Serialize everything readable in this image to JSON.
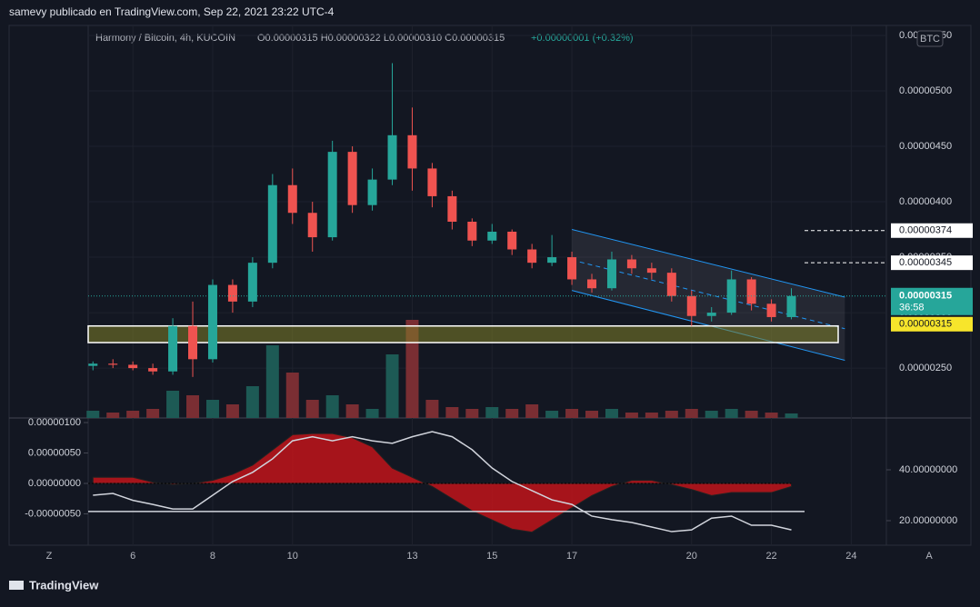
{
  "header": {
    "publisher": "samevy publicado en TradingView.com, Sep 22, 2021 23:22 UTC-4",
    "symbol": "Harmony / Bitcoin, 4h, KUCOIN",
    "ohlc": "O0.00000315 H0.00000322 L0.00000310 C0.00000315",
    "change": "+0.00000001 (+0.32%)",
    "currency": "BTC",
    "left_button": "Z",
    "right_button": "A",
    "logo": "TradingView"
  },
  "chart_data": [
    {
      "type": "candlestick",
      "up_color": "#26a69a",
      "down_color": "#ef5350",
      "x": [
        5.0,
        5.5,
        6.0,
        6.5,
        7.0,
        7.5,
        8.0,
        8.5,
        9.0,
        9.5,
        10.0,
        10.5,
        11.0,
        11.5,
        12.0,
        12.5,
        13.0,
        13.5,
        14.0,
        14.5,
        15.0,
        15.5,
        16.0,
        16.5,
        17.0,
        17.5,
        18.0,
        18.5,
        19.0,
        19.5,
        20.0,
        20.5,
        21.0,
        21.5,
        22.0,
        22.5
      ],
      "open": [
        2.52e-06,
        2.54e-06,
        2.53e-06,
        2.5e-06,
        2.47e-06,
        2.88e-06,
        2.58e-06,
        3.25e-06,
        3.1e-06,
        3.45e-06,
        4.15e-06,
        3.9e-06,
        3.68e-06,
        4.45e-06,
        3.97e-06,
        4.2e-06,
        4.6e-06,
        4.3e-06,
        4.05e-06,
        3.82e-06,
        3.65e-06,
        3.73e-06,
        3.57e-06,
        3.45e-06,
        3.5e-06,
        3.3e-06,
        3.22e-06,
        3.48e-06,
        3.4e-06,
        3.36e-06,
        3.15e-06,
        2.97e-06,
        3e-06,
        3.3e-06,
        3.08e-06,
        2.96e-06
      ],
      "high": [
        2.56e-06,
        2.58e-06,
        2.56e-06,
        2.54e-06,
        2.95e-06,
        3.1e-06,
        3.3e-06,
        3.3e-06,
        3.5e-06,
        4.25e-06,
        4.3e-06,
        4e-06,
        4.55e-06,
        4.5e-06,
        4.3e-06,
        5.25e-06,
        4.85e-06,
        4.35e-06,
        4.1e-06,
        3.85e-06,
        3.8e-06,
        3.75e-06,
        3.62e-06,
        3.7e-06,
        3.55e-06,
        3.35e-06,
        3.55e-06,
        3.52e-06,
        3.45e-06,
        3.4e-06,
        3.2e-06,
        3.05e-06,
        3.38e-06,
        3.32e-06,
        3.12e-06,
        3.22e-06
      ],
      "low": [
        2.48e-06,
        2.5e-06,
        2.48e-06,
        2.44e-06,
        2.44e-06,
        2.42e-06,
        2.55e-06,
        3e-06,
        3.05e-06,
        3.4e-06,
        3.8e-06,
        3.55e-06,
        3.65e-06,
        3.9e-06,
        3.92e-06,
        4.15e-06,
        4.1e-06,
        3.95e-06,
        3.75e-06,
        3.6e-06,
        3.62e-06,
        3.52e-06,
        3.4e-06,
        3.42e-06,
        3.25e-06,
        3.18e-06,
        3.2e-06,
        3.35e-06,
        3.3e-06,
        3.1e-06,
        2.88e-06,
        2.92e-06,
        2.98e-06,
        3.02e-06,
        2.92e-06,
        2.94e-06
      ],
      "close": [
        2.54e-06,
        2.53e-06,
        2.5e-06,
        2.47e-06,
        2.88e-06,
        2.58e-06,
        3.25e-06,
        3.1e-06,
        3.45e-06,
        4.15e-06,
        3.9e-06,
        3.68e-06,
        4.45e-06,
        3.97e-06,
        4.2e-06,
        4.6e-06,
        4.3e-06,
        4.05e-06,
        3.82e-06,
        3.65e-06,
        3.73e-06,
        3.57e-06,
        3.45e-06,
        3.5e-06,
        3.3e-06,
        3.22e-06,
        3.48e-06,
        3.4e-06,
        3.36e-06,
        3.15e-06,
        2.97e-06,
        3e-06,
        3.3e-06,
        3.08e-06,
        2.96e-06,
        3.15e-06
      ],
      "volume": [
        8,
        6,
        8,
        10,
        30,
        25,
        20,
        15,
        35,
        80,
        50,
        20,
        25,
        15,
        10,
        70,
        108,
        20,
        12,
        10,
        12,
        10,
        15,
        8,
        10,
        8,
        10,
        6,
        6,
        8,
        10,
        8,
        10,
        8,
        6,
        5
      ],
      "xlim": [
        4.88,
        24.88
      ],
      "xticks": [
        6,
        8,
        10,
        13,
        15,
        17,
        20,
        22,
        24
      ],
      "ylim": [
        2.05e-06,
        5.59e-06
      ],
      "yticks": [
        {
          "value": 2.5e-06,
          "label": "0.00000250"
        },
        {
          "value": 3e-06,
          "label": "0.00000300"
        },
        {
          "value": 3.5e-06,
          "label": "0.00000350"
        },
        {
          "value": 4e-06,
          "label": "0.00000400"
        },
        {
          "value": 4.5e-06,
          "label": "0.00000450"
        },
        {
          "value": 5e-06,
          "label": "0.00000500"
        },
        {
          "value": 5.5e-06,
          "label": "0.00000550"
        }
      ],
      "price_lines": [
        {
          "value": 3.74e-06,
          "label": "0.00000374"
        },
        {
          "value": 3.45e-06,
          "label": "0.00000345"
        }
      ],
      "last_price": {
        "value": 3.15e-06,
        "label": "0.00000315",
        "countdown": "36:58"
      },
      "zone_label": "0.00000315",
      "support_zone": [
        2.73e-06,
        2.88e-06
      ],
      "channel": {
        "x": [
          17.0,
          23.84
        ],
        "upper": [
          3.75e-06,
          3.14e-06
        ],
        "lower": [
          3.2e-06,
          2.57e-06
        ],
        "color": "#2196f3"
      }
    },
    {
      "type": "oscillator",
      "x": [
        5.0,
        5.5,
        6.0,
        6.5,
        7.0,
        7.5,
        8.0,
        8.5,
        9.0,
        9.5,
        10.0,
        10.5,
        11.0,
        11.5,
        12.0,
        12.5,
        13.0,
        13.5,
        14.0,
        14.5,
        15.0,
        15.5,
        16.0,
        16.5,
        17.0,
        17.5,
        18.0,
        18.5,
        19.0,
        19.5,
        20.0,
        20.5,
        21.0,
        21.5,
        22.0,
        22.5
      ],
      "series": [
        {
          "type": "area",
          "values": [
            1e-07,
            1e-07,
            1e-07,
            2e-08,
            -2e-08,
            0,
            5e-08,
            1.5e-07,
            3e-07,
            5.5e-07,
            8e-07,
            8.2e-07,
            8.2e-07,
            7.5e-07,
            6e-07,
            2.5e-07,
            1e-07,
            -5e-08,
            -2.5e-07,
            -4.5e-07,
            -6e-07,
            -7.5e-07,
            -8e-07,
            -6e-07,
            -4e-07,
            -2e-07,
            -5e-08,
            5e-08,
            5e-08,
            -2e-08,
            -1e-07,
            -2e-07,
            -1.5e-07,
            -1.5e-07,
            -1.5e-07,
            -5e-08
          ],
          "up_color": "#17b31a",
          "down_color": "#c0141a"
        },
        {
          "type": "line",
          "axis": "y2",
          "color": "#d1d4dc",
          "values": [
            30,
            30.7,
            28,
            26.4,
            24.6,
            24.6,
            30,
            35.4,
            39,
            44.3,
            51.4,
            53,
            51.4,
            53,
            51.4,
            50.4,
            53,
            55,
            53,
            47.9,
            40.7,
            35.4,
            31.8,
            28.2,
            26.4,
            21.8,
            20.4,
            19.3,
            17.5,
            15.7,
            16.4,
            21,
            21.8,
            18.2,
            18.2,
            16.4
          ]
        }
      ],
      "level": {
        "value": 23.6,
        "axis": "y2"
      },
      "ylim": [
        -1.015e-06,
        1.075e-06
      ],
      "yticks": [
        {
          "value": -5e-07,
          "label": "-0.00000050"
        },
        {
          "value": 0,
          "label": "0.00000000"
        },
        {
          "value": 5e-07,
          "label": "0.00000050"
        },
        {
          "value": 1e-06,
          "label": "0.00000100"
        }
      ],
      "y2lim": [
        10.36,
        60.36
      ],
      "y2ticks": [
        {
          "value": 20,
          "label": "20.00000000"
        },
        {
          "value": 40,
          "label": "40.00000000"
        }
      ]
    }
  ]
}
